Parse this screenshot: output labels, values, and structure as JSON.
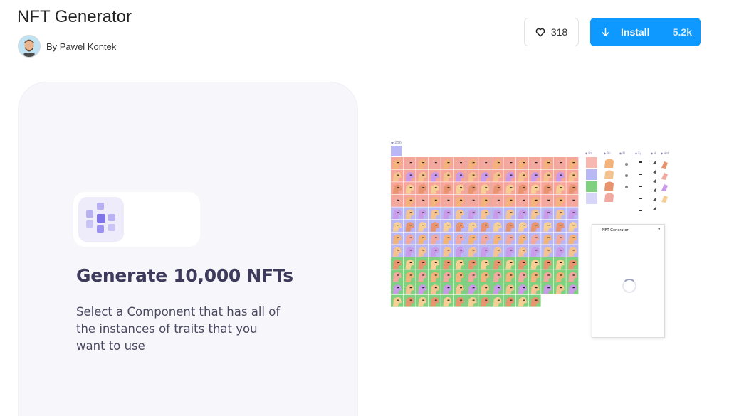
{
  "plugin": {
    "title": "NFT Generator",
    "author": "By Pawel Kontek",
    "likes": "318",
    "install_label": "Install",
    "installs": "5.2k"
  },
  "hero": {
    "headline": "Generate 10,000 NFTs",
    "description": "Select a Component that has all of the instances of traits that you want to use"
  },
  "preview": {
    "count_label": "256",
    "trait_labels": [
      "Ba...",
      "Bo...",
      "M...",
      "Ey...",
      "H...",
      "Hat"
    ],
    "plugin_window_title": "NFT Generator",
    "close_glyph": "×",
    "row_colors": [
      "#f6a59b",
      "#f6a59b",
      "#f6a59b",
      "#f6a59b",
      "#b9b8f5",
      "#b9b8f5",
      "#b9b8f5",
      "#b9b8f5",
      "#7fd07f",
      "#7fd07f",
      "#7fd07f",
      "#7fd07f"
    ],
    "face_colors": [
      "#f3b37a",
      "#f5c38f",
      "#e8956f",
      "#f2a9a0",
      "#c99be8",
      "#f7cf95"
    ]
  },
  "colors": {
    "accent": "#0d99ff",
    "logo": "#8b80ee",
    "headline": "#3d3a5c"
  },
  "icons": {
    "like": "heart-icon",
    "install": "arrow-down-icon",
    "logo": "grid-dots-icon"
  }
}
